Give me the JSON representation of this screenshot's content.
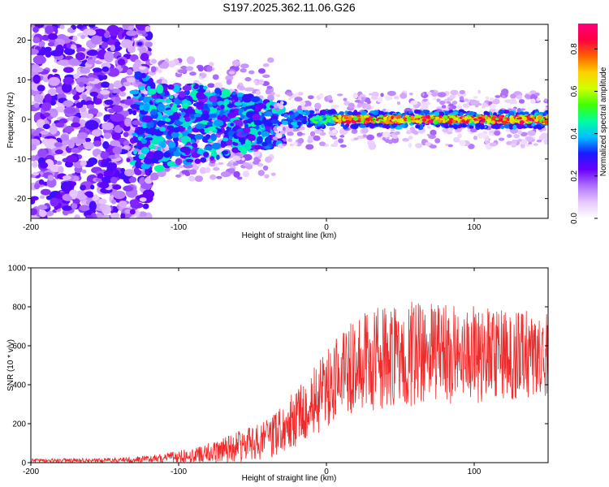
{
  "title": "S197.2025.362.11.06.G26",
  "chart_data": [
    {
      "type": "heatmap",
      "xlabel": "Height of straight line (km)",
      "ylabel": "Frequency (Hz)",
      "xlim": [
        -200,
        150
      ],
      "ylim": [
        -25,
        24
      ],
      "xticks": [
        -200,
        -100,
        0,
        100
      ],
      "yticks": [
        -20,
        -10,
        0,
        10,
        20
      ],
      "colorbar": {
        "label": "Normalized spectral amplitude",
        "range": [
          0,
          0.92
        ],
        "ticks": [
          0.0,
          0.2,
          0.4,
          0.6,
          0.8
        ],
        "colors": [
          "#ffffff",
          "#e8c8ff",
          "#b070ff",
          "#6a00ff",
          "#1a1aff",
          "#00c0ff",
          "#00ffa0",
          "#40ff00",
          "#d0ff00",
          "#ffd000",
          "#ff6000",
          "#ff0040",
          "#ff0080"
        ]
      }
    },
    {
      "type": "line",
      "xlabel": "Height of straight line (km)",
      "ylabel": "SNR (10 * v/v)",
      "xlim": [
        -200,
        150
      ],
      "ylim": [
        0,
        1000
      ],
      "xticks": [
        -200,
        -100,
        0,
        100
      ],
      "yticks": [
        0,
        200,
        400,
        600,
        800,
        1000
      ],
      "color": "#ee2a2a",
      "envelope": {
        "x": [
          -200,
          -150,
          -120,
          -100,
          -80,
          -60,
          -40,
          -30,
          -20,
          -10,
          0,
          10,
          20,
          40,
          60,
          80,
          100,
          120,
          150
        ],
        "mean": [
          10,
          12,
          18,
          30,
          50,
          80,
          120,
          170,
          230,
          300,
          380,
          450,
          510,
          540,
          560,
          560,
          555,
          550,
          560
        ],
        "spread": [
          10,
          12,
          18,
          30,
          50,
          80,
          100,
          130,
          150,
          170,
          200,
          220,
          250,
          270,
          270,
          260,
          250,
          240,
          230
        ]
      }
    }
  ]
}
